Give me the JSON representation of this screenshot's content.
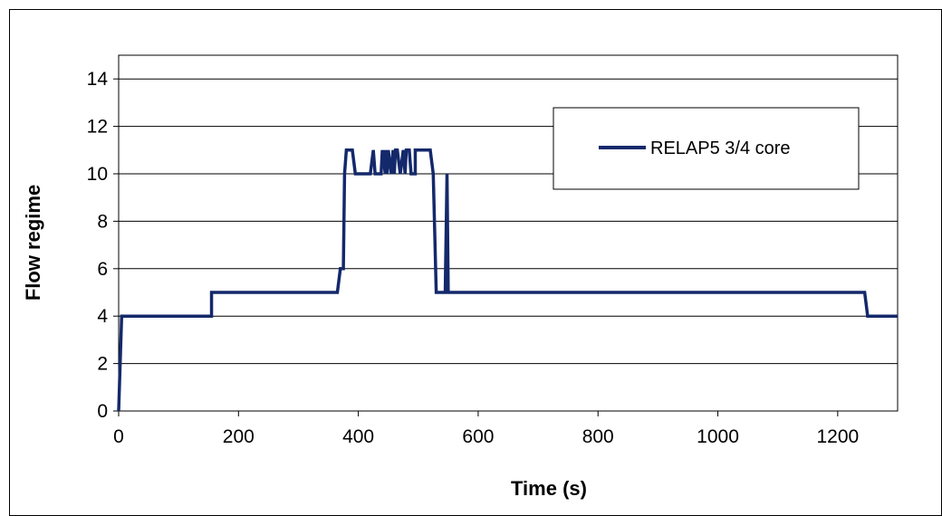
{
  "chart_data": {
    "type": "line",
    "title": "",
    "xlabel": "Time (s)",
    "ylabel": "Flow regime",
    "xlim": [
      0,
      1300
    ],
    "ylim": [
      0,
      15
    ],
    "xticks": [
      0,
      200,
      400,
      600,
      800,
      1000,
      1200
    ],
    "yticks": [
      0,
      2,
      4,
      6,
      8,
      10,
      12,
      14
    ],
    "grid": "horizontal",
    "legend_position": "top-right",
    "series": [
      {
        "name": "RELAP5 3/4 core",
        "color": "#14296b",
        "x": [
          0,
          5,
          5,
          155,
          155,
          365,
          365,
          370,
          375,
          377,
          380,
          385,
          390,
          395,
          395,
          420,
          425,
          428,
          430,
          438,
          440,
          445,
          445,
          448,
          450,
          455,
          458,
          460,
          462,
          465,
          470,
          475,
          478,
          480,
          485,
          488,
          490,
          495,
          495,
          500,
          500,
          520,
          525,
          530,
          530,
          545,
          548,
          550,
          552,
          1245,
          1250,
          1300
        ],
        "y": [
          0,
          4,
          4,
          4,
          5,
          5,
          5,
          6,
          6,
          10,
          11,
          11,
          11,
          10,
          10,
          10,
          11,
          10,
          10,
          10,
          11,
          10,
          11,
          10,
          11,
          10,
          11,
          10,
          11,
          11,
          10,
          11,
          10,
          11,
          11,
          10,
          10,
          10,
          11,
          11,
          11,
          11,
          10,
          5,
          5,
          5,
          10,
          5,
          5,
          5,
          4,
          4
        ]
      }
    ]
  }
}
